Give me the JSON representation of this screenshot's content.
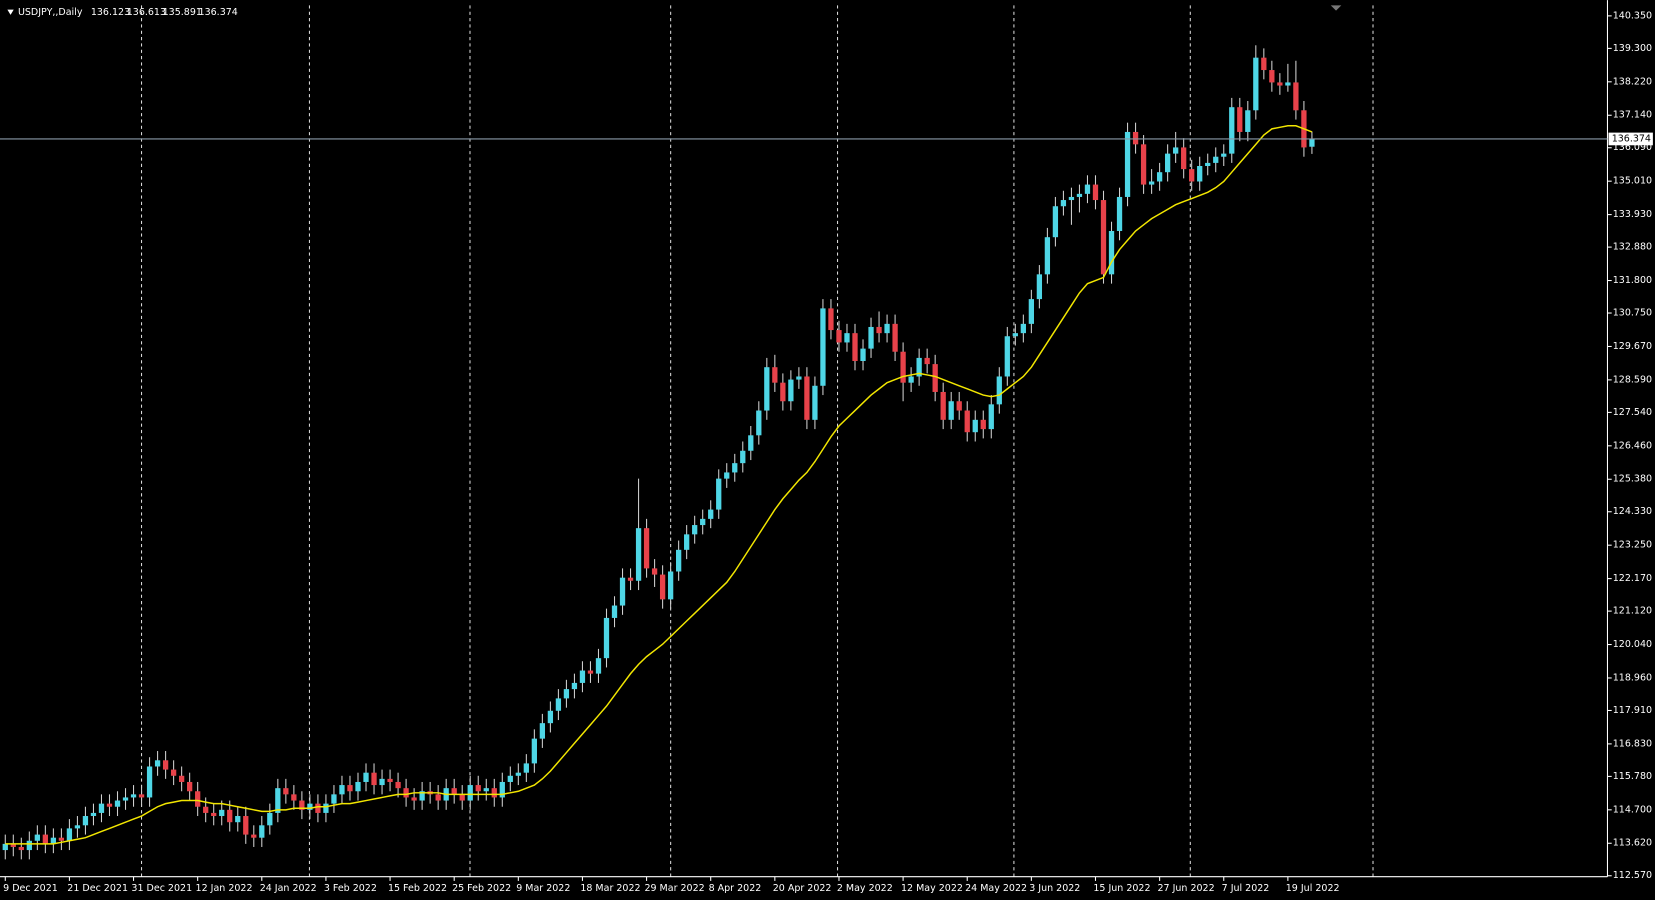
{
  "chart_data": {
    "type": "candlestick",
    "symbol": "USDJPY,,Daily",
    "up_color": "#4ed6e6",
    "down_color": "#e8424a",
    "wick_color": "#d0d0d0",
    "ylim": [
      112.54,
      140.69
    ],
    "yticks": [
      {
        "value": 140.35,
        "label": "140.350"
      },
      {
        "value": 139.3,
        "label": "139.300"
      },
      {
        "value": 138.22,
        "label": "138.220"
      },
      {
        "value": 137.14,
        "label": "137.140"
      },
      {
        "value": 136.09,
        "label": "136.090"
      },
      {
        "value": 135.01,
        "label": "135.010"
      },
      {
        "value": 133.93,
        "label": "133.930"
      },
      {
        "value": 132.88,
        "label": "132.880"
      },
      {
        "value": 131.8,
        "label": "131.800"
      },
      {
        "value": 130.75,
        "label": "130.750"
      },
      {
        "value": 129.67,
        "label": "129.670"
      },
      {
        "value": 128.59,
        "label": "128.590"
      },
      {
        "value": 127.54,
        "label": "127.540"
      },
      {
        "value": 126.46,
        "label": "126.460"
      },
      {
        "value": 125.38,
        "label": "125.380"
      },
      {
        "value": 124.33,
        "label": "124.330"
      },
      {
        "value": 123.25,
        "label": "123.250"
      },
      {
        "value": 122.17,
        "label": "122.170"
      },
      {
        "value": 121.12,
        "label": "121.120"
      },
      {
        "value": 120.04,
        "label": "120.040"
      },
      {
        "value": 118.96,
        "label": "118.960"
      },
      {
        "value": 117.91,
        "label": "117.910"
      },
      {
        "value": 116.83,
        "label": "116.830"
      },
      {
        "value": 115.78,
        "label": "115.780"
      },
      {
        "value": 114.7,
        "label": "114.700"
      },
      {
        "value": 113.62,
        "label": "113.620"
      },
      {
        "value": 112.57,
        "label": "112.570"
      }
    ],
    "categories": [
      "9 Dec 2021",
      null,
      null,
      null,
      null,
      null,
      null,
      null,
      "21 Dec 2021",
      null,
      null,
      null,
      null,
      null,
      null,
      null,
      "31 Dec 2021",
      null,
      null,
      null,
      null,
      null,
      null,
      null,
      "12 Jan 2022",
      null,
      null,
      null,
      null,
      null,
      null,
      null,
      "24 Jan 2022",
      null,
      null,
      null,
      null,
      null,
      null,
      null,
      "3 Feb 2022",
      null,
      null,
      null,
      null,
      null,
      null,
      null,
      "15 Feb 2022",
      null,
      null,
      null,
      null,
      null,
      null,
      null,
      "25 Feb 2022",
      null,
      null,
      null,
      null,
      null,
      null,
      null,
      "9 Mar 2022",
      null,
      null,
      null,
      null,
      null,
      null,
      null,
      "18 Mar 2022",
      null,
      null,
      null,
      null,
      null,
      null,
      null,
      "29 Mar 2022",
      null,
      null,
      null,
      null,
      null,
      null,
      null,
      "8 Apr 2022",
      null,
      null,
      null,
      null,
      null,
      null,
      null,
      "20 Apr 2022",
      null,
      null,
      null,
      null,
      null,
      null,
      null,
      "2 May 2022",
      null,
      null,
      null,
      null,
      null,
      null,
      null,
      "12 May 2022",
      null,
      null,
      null,
      null,
      null,
      null,
      null,
      "24 May 2022",
      null,
      null,
      null,
      null,
      null,
      null,
      null,
      "3 Jun 2022",
      null,
      null,
      null,
      null,
      null,
      null,
      null,
      "15 Jun 2022",
      null,
      null,
      null,
      null,
      null,
      null,
      null,
      "27 Jun 2022",
      null,
      null,
      null,
      null,
      null,
      null,
      null,
      "7 Jul 2022",
      null,
      null,
      null,
      null,
      null,
      null,
      null,
      "19 Jul 2022",
      null,
      null,
      null
    ],
    "ohlc": [
      [
        113.4,
        113.9,
        113.1,
        113.6
      ],
      [
        113.6,
        113.9,
        113.2,
        113.5
      ],
      [
        113.5,
        113.8,
        113.1,
        113.4
      ],
      [
        113.4,
        114.0,
        113.1,
        113.7
      ],
      [
        113.7,
        114.2,
        113.4,
        113.9
      ],
      [
        113.9,
        114.2,
        113.3,
        113.6
      ],
      [
        113.6,
        114.1,
        113.3,
        113.8
      ],
      [
        113.8,
        114.1,
        113.4,
        113.7
      ],
      [
        113.7,
        114.4,
        113.4,
        114.1
      ],
      [
        114.1,
        114.5,
        113.8,
        114.2
      ],
      [
        114.2,
        114.8,
        113.9,
        114.5
      ],
      [
        114.5,
        114.9,
        114.2,
        114.6
      ],
      [
        114.6,
        115.2,
        114.3,
        114.9
      ],
      [
        114.9,
        115.2,
        114.5,
        114.8
      ],
      [
        114.8,
        115.3,
        114.5,
        115.0
      ],
      [
        115.0,
        115.4,
        114.7,
        115.1
      ],
      [
        115.1,
        115.5,
        114.8,
        115.2
      ],
      [
        115.2,
        115.5,
        114.8,
        115.1
      ],
      [
        115.1,
        116.4,
        114.8,
        116.1
      ],
      [
        116.1,
        116.6,
        115.8,
        116.3
      ],
      [
        116.3,
        116.6,
        115.7,
        116.0
      ],
      [
        116.0,
        116.3,
        115.5,
        115.8
      ],
      [
        115.8,
        116.1,
        115.3,
        115.6
      ],
      [
        115.6,
        115.9,
        115.0,
        115.3
      ],
      [
        115.3,
        115.6,
        114.5,
        114.8
      ],
      [
        114.8,
        115.1,
        114.3,
        114.6
      ],
      [
        114.6,
        114.9,
        114.2,
        114.5
      ],
      [
        114.5,
        115.0,
        114.2,
        114.7
      ],
      [
        114.7,
        115.0,
        114.0,
        114.3
      ],
      [
        114.3,
        114.8,
        114.0,
        114.5
      ],
      [
        114.5,
        114.8,
        113.6,
        113.9
      ],
      [
        113.9,
        114.2,
        113.5,
        113.8
      ],
      [
        113.8,
        114.5,
        113.5,
        114.2
      ],
      [
        114.2,
        114.9,
        113.9,
        114.6
      ],
      [
        114.6,
        115.7,
        114.3,
        115.4
      ],
      [
        115.4,
        115.7,
        114.9,
        115.2
      ],
      [
        115.2,
        115.5,
        114.7,
        115.0
      ],
      [
        115.0,
        115.3,
        114.4,
        114.7
      ],
      [
        114.7,
        115.2,
        114.4,
        114.9
      ],
      [
        114.9,
        115.2,
        114.3,
        114.6
      ],
      [
        114.6,
        115.2,
        114.3,
        114.9
      ],
      [
        114.9,
        115.5,
        114.6,
        115.2
      ],
      [
        115.2,
        115.8,
        114.9,
        115.5
      ],
      [
        115.5,
        115.8,
        115.0,
        115.3
      ],
      [
        115.3,
        115.9,
        115.0,
        115.6
      ],
      [
        115.6,
        116.2,
        115.3,
        115.9
      ],
      [
        115.9,
        116.2,
        115.2,
        115.5
      ],
      [
        115.5,
        116.0,
        115.2,
        115.7
      ],
      [
        115.7,
        116.0,
        115.3,
        115.6
      ],
      [
        115.6,
        115.9,
        115.1,
        115.4
      ],
      [
        115.4,
        115.7,
        114.8,
        115.1
      ],
      [
        115.1,
        115.4,
        114.7,
        115.0
      ],
      [
        115.0,
        115.6,
        114.7,
        115.3
      ],
      [
        115.3,
        115.6,
        114.9,
        115.2
      ],
      [
        115.2,
        115.5,
        114.7,
        115.0
      ],
      [
        115.0,
        115.7,
        114.7,
        115.4
      ],
      [
        115.4,
        115.7,
        114.9,
        115.2
      ],
      [
        115.2,
        115.5,
        114.7,
        115.0
      ],
      [
        115.0,
        115.8,
        114.7,
        115.5
      ],
      [
        115.5,
        115.8,
        115.0,
        115.3
      ],
      [
        115.3,
        115.7,
        115.0,
        115.4
      ],
      [
        115.4,
        115.7,
        114.8,
        115.1
      ],
      [
        115.1,
        115.9,
        114.8,
        115.6
      ],
      [
        115.6,
        116.1,
        115.3,
        115.8
      ],
      [
        115.8,
        116.2,
        115.5,
        115.9
      ],
      [
        115.9,
        116.5,
        115.6,
        116.2
      ],
      [
        116.2,
        117.3,
        115.9,
        117.0
      ],
      [
        117.0,
        117.8,
        116.7,
        117.5
      ],
      [
        117.5,
        118.2,
        117.2,
        117.9
      ],
      [
        117.9,
        118.6,
        117.6,
        118.3
      ],
      [
        118.3,
        118.9,
        118.0,
        118.6
      ],
      [
        118.6,
        119.1,
        118.3,
        118.8
      ],
      [
        118.8,
        119.5,
        118.5,
        119.2
      ],
      [
        119.2,
        119.5,
        118.8,
        119.1
      ],
      [
        119.1,
        119.9,
        118.8,
        119.6
      ],
      [
        119.6,
        121.2,
        119.3,
        120.9
      ],
      [
        120.9,
        121.6,
        120.6,
        121.3
      ],
      [
        121.3,
        122.5,
        121.0,
        122.2
      ],
      [
        122.2,
        122.5,
        121.8,
        122.1
      ],
      [
        122.1,
        125.4,
        121.8,
        123.8
      ],
      [
        123.8,
        124.1,
        122.2,
        122.5
      ],
      [
        122.5,
        122.8,
        121.9,
        122.3
      ],
      [
        122.3,
        122.6,
        121.2,
        121.5
      ],
      [
        121.5,
        122.7,
        121.2,
        122.4
      ],
      [
        122.4,
        123.4,
        122.1,
        123.1
      ],
      [
        123.1,
        123.9,
        122.8,
        123.6
      ],
      [
        123.6,
        124.2,
        123.3,
        123.9
      ],
      [
        123.9,
        124.4,
        123.6,
        124.1
      ],
      [
        124.1,
        124.7,
        123.8,
        124.4
      ],
      [
        124.4,
        125.7,
        124.1,
        125.4
      ],
      [
        125.4,
        125.9,
        125.1,
        125.6
      ],
      [
        125.6,
        126.2,
        125.3,
        125.9
      ],
      [
        125.9,
        126.6,
        125.6,
        126.3
      ],
      [
        126.3,
        127.1,
        126.0,
        126.8
      ],
      [
        126.8,
        127.9,
        126.5,
        127.6
      ],
      [
        127.6,
        129.3,
        127.3,
        129.0
      ],
      [
        129.0,
        129.4,
        128.2,
        128.5
      ],
      [
        128.5,
        128.8,
        127.6,
        127.9
      ],
      [
        127.9,
        128.9,
        127.6,
        128.6
      ],
      [
        128.6,
        129.0,
        128.3,
        128.7
      ],
      [
        128.7,
        129.0,
        127.0,
        127.3
      ],
      [
        127.3,
        128.7,
        127.0,
        128.4
      ],
      [
        128.4,
        131.2,
        128.1,
        130.9
      ],
      [
        130.9,
        131.2,
        129.9,
        130.2
      ],
      [
        130.2,
        130.5,
        129.5,
        129.8
      ],
      [
        129.8,
        130.4,
        129.5,
        130.1
      ],
      [
        130.1,
        130.4,
        128.9,
        129.2
      ],
      [
        129.2,
        129.9,
        128.9,
        129.6
      ],
      [
        129.6,
        130.6,
        129.3,
        130.3
      ],
      [
        130.3,
        130.8,
        129.8,
        130.1
      ],
      [
        130.1,
        130.7,
        129.8,
        130.4
      ],
      [
        130.4,
        130.7,
        129.2,
        129.5
      ],
      [
        129.5,
        129.8,
        127.9,
        128.5
      ],
      [
        128.5,
        129.0,
        128.2,
        128.7
      ],
      [
        128.7,
        129.6,
        128.4,
        129.3
      ],
      [
        129.3,
        129.6,
        128.8,
        129.1
      ],
      [
        129.1,
        129.4,
        127.9,
        128.2
      ],
      [
        128.2,
        128.5,
        127.0,
        127.3
      ],
      [
        127.3,
        128.2,
        127.0,
        127.9
      ],
      [
        127.9,
        128.2,
        127.3,
        127.6
      ],
      [
        127.6,
        127.9,
        126.6,
        126.9
      ],
      [
        126.9,
        127.6,
        126.6,
        127.3
      ],
      [
        127.3,
        127.6,
        126.7,
        127.0
      ],
      [
        127.0,
        128.1,
        126.7,
        127.8
      ],
      [
        127.8,
        129.0,
        127.5,
        128.7
      ],
      [
        128.7,
        130.3,
        128.4,
        130.0
      ],
      [
        130.0,
        130.4,
        129.7,
        130.1
      ],
      [
        130.1,
        130.7,
        129.8,
        130.4
      ],
      [
        130.4,
        131.5,
        130.1,
        131.2
      ],
      [
        131.2,
        132.3,
        130.9,
        132.0
      ],
      [
        132.0,
        133.5,
        131.7,
        133.2
      ],
      [
        133.2,
        134.5,
        132.9,
        134.2
      ],
      [
        134.2,
        134.7,
        133.9,
        134.4
      ],
      [
        134.4,
        134.8,
        133.6,
        134.5
      ],
      [
        134.5,
        134.9,
        134.0,
        134.6
      ],
      [
        134.6,
        135.2,
        134.3,
        134.9
      ],
      [
        134.9,
        135.2,
        134.1,
        134.4
      ],
      [
        134.4,
        134.7,
        131.7,
        132.0
      ],
      [
        132.0,
        133.7,
        131.7,
        133.4
      ],
      [
        133.4,
        134.8,
        133.1,
        134.5
      ],
      [
        134.5,
        136.9,
        134.2,
        136.6
      ],
      [
        136.6,
        136.9,
        135.9,
        136.2
      ],
      [
        136.2,
        136.5,
        134.6,
        134.9
      ],
      [
        134.9,
        135.4,
        134.6,
        135.0
      ],
      [
        135.0,
        135.6,
        134.7,
        135.3
      ],
      [
        135.3,
        136.2,
        135.0,
        135.9
      ],
      [
        135.9,
        136.6,
        135.6,
        136.1
      ],
      [
        136.1,
        136.4,
        135.1,
        135.4
      ],
      [
        135.4,
        135.7,
        134.7,
        135.0
      ],
      [
        135.0,
        135.8,
        134.7,
        135.5
      ],
      [
        135.5,
        135.9,
        135.2,
        135.6
      ],
      [
        135.6,
        136.1,
        135.3,
        135.8
      ],
      [
        135.8,
        136.2,
        135.5,
        135.9
      ],
      [
        135.9,
        137.7,
        135.6,
        137.4
      ],
      [
        137.4,
        137.7,
        136.3,
        136.6
      ],
      [
        136.6,
        137.6,
        136.3,
        137.3
      ],
      [
        137.3,
        139.4,
        137.0,
        139.0
      ],
      [
        139.0,
        139.3,
        138.3,
        138.6
      ],
      [
        138.6,
        138.9,
        137.9,
        138.2
      ],
      [
        138.2,
        138.5,
        137.8,
        138.1
      ],
      [
        138.1,
        138.8,
        137.9,
        138.2
      ],
      [
        138.2,
        138.9,
        137.0,
        137.3
      ],
      [
        137.3,
        137.6,
        135.8,
        136.1
      ],
      [
        136.123,
        136.613,
        135.891,
        136.374
      ]
    ],
    "ma": {
      "color": "#f2e600",
      "values": [
        113.6,
        113.6,
        113.6,
        113.6,
        113.6,
        113.6,
        113.6,
        113.65,
        113.7,
        113.75,
        113.8,
        113.9,
        114.0,
        114.1,
        114.2,
        114.3,
        114.4,
        114.5,
        114.65,
        114.8,
        114.9,
        114.95,
        115.0,
        115.0,
        115.0,
        114.95,
        114.9,
        114.9,
        114.85,
        114.8,
        114.75,
        114.7,
        114.65,
        114.65,
        114.7,
        114.7,
        114.75,
        114.75,
        114.75,
        114.8,
        114.8,
        114.85,
        114.9,
        114.9,
        114.95,
        115.0,
        115.05,
        115.1,
        115.15,
        115.2,
        115.2,
        115.25,
        115.25,
        115.25,
        115.25,
        115.2,
        115.2,
        115.2,
        115.2,
        115.2,
        115.2,
        115.2,
        115.2,
        115.25,
        115.3,
        115.4,
        115.5,
        115.7,
        115.95,
        116.25,
        116.55,
        116.85,
        117.15,
        117.45,
        117.75,
        118.05,
        118.4,
        118.75,
        119.1,
        119.4,
        119.65,
        119.85,
        120.05,
        120.3,
        120.55,
        120.8,
        121.05,
        121.3,
        121.55,
        121.8,
        122.05,
        122.4,
        122.8,
        123.2,
        123.6,
        124.0,
        124.4,
        124.75,
        125.05,
        125.35,
        125.6,
        125.95,
        126.35,
        126.75,
        127.1,
        127.35,
        127.6,
        127.85,
        128.1,
        128.3,
        128.5,
        128.6,
        128.7,
        128.75,
        128.8,
        128.75,
        128.7,
        128.6,
        128.5,
        128.4,
        128.3,
        128.2,
        128.1,
        128.05,
        128.1,
        128.3,
        128.5,
        128.7,
        129.0,
        129.4,
        129.8,
        130.2,
        130.6,
        131.0,
        131.4,
        131.7,
        131.8,
        131.9,
        132.4,
        132.8,
        133.1,
        133.4,
        133.6,
        133.8,
        133.95,
        134.1,
        134.25,
        134.35,
        134.45,
        134.55,
        134.65,
        134.8,
        135.0,
        135.3,
        135.6,
        135.9,
        136.2,
        136.5,
        136.7,
        136.75,
        136.8,
        136.8,
        136.7,
        136.6
      ]
    }
  }
}
